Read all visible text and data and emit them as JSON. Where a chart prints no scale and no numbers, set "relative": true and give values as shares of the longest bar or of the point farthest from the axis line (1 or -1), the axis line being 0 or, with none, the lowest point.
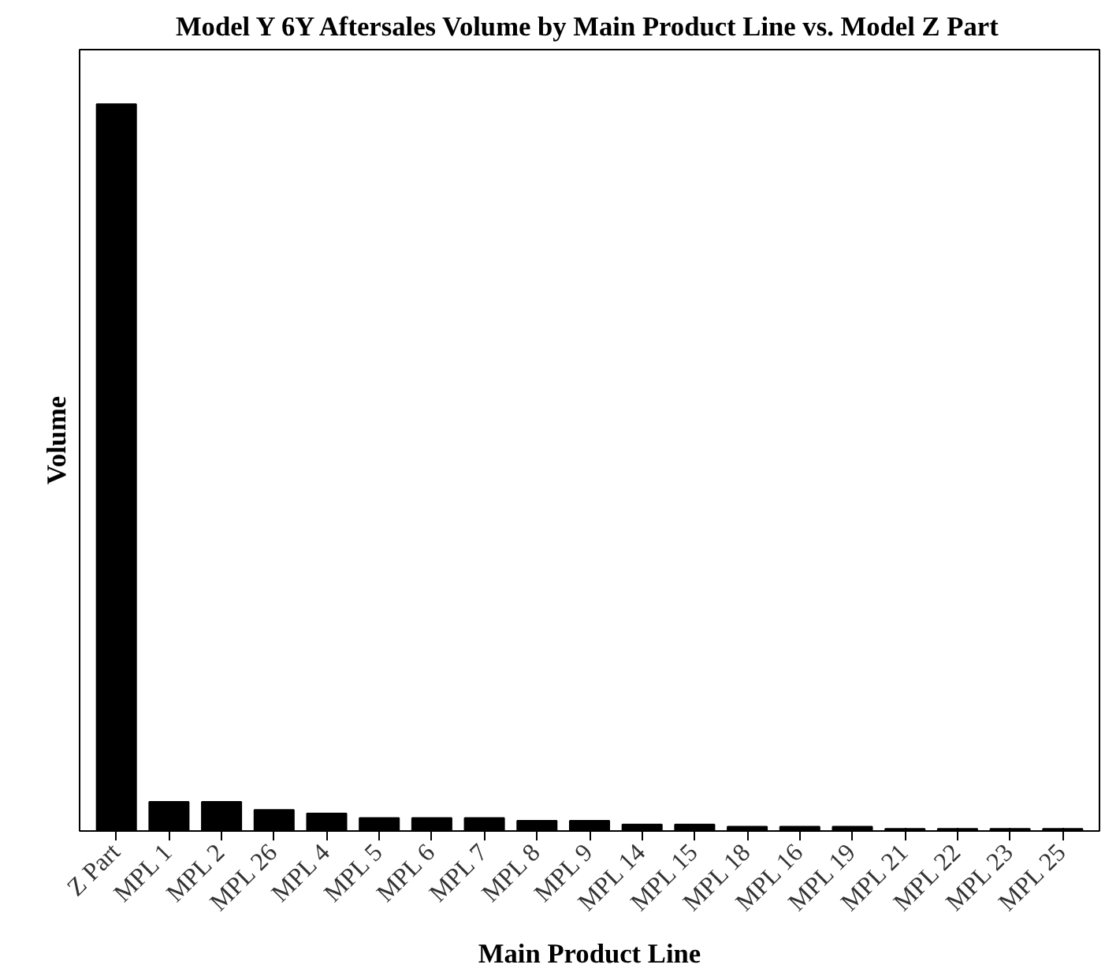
{
  "chart_data": {
    "type": "bar",
    "title": "Model Y 6Y Aftersales Volume by Main Product Line vs. Model Z Part",
    "xlabel": "Main Product Line",
    "ylabel": "Volume",
    "relative": true,
    "color": "#000000",
    "categories": [
      "Z Part",
      "MPL 1",
      "MPL 2",
      "MPL 26",
      "MPL 4",
      "MPL 5",
      "MPL 6",
      "MPL 7",
      "MPL 8",
      "MPL 9",
      "MPL 14",
      "MPL 15",
      "MPL 18",
      "MPL 16",
      "MPL 19",
      "MPL 21",
      "MPL 22",
      "MPL 23",
      "MPL 25"
    ],
    "values": [
      1,
      0.04,
      0.04,
      0.029,
      0.024,
      0.018,
      0.018,
      0.018,
      0.014,
      0.014,
      0.009,
      0.009,
      0.006,
      0.006,
      0.006,
      0.003,
      0.003,
      0.003,
      0.003
    ],
    "grid": false
  }
}
